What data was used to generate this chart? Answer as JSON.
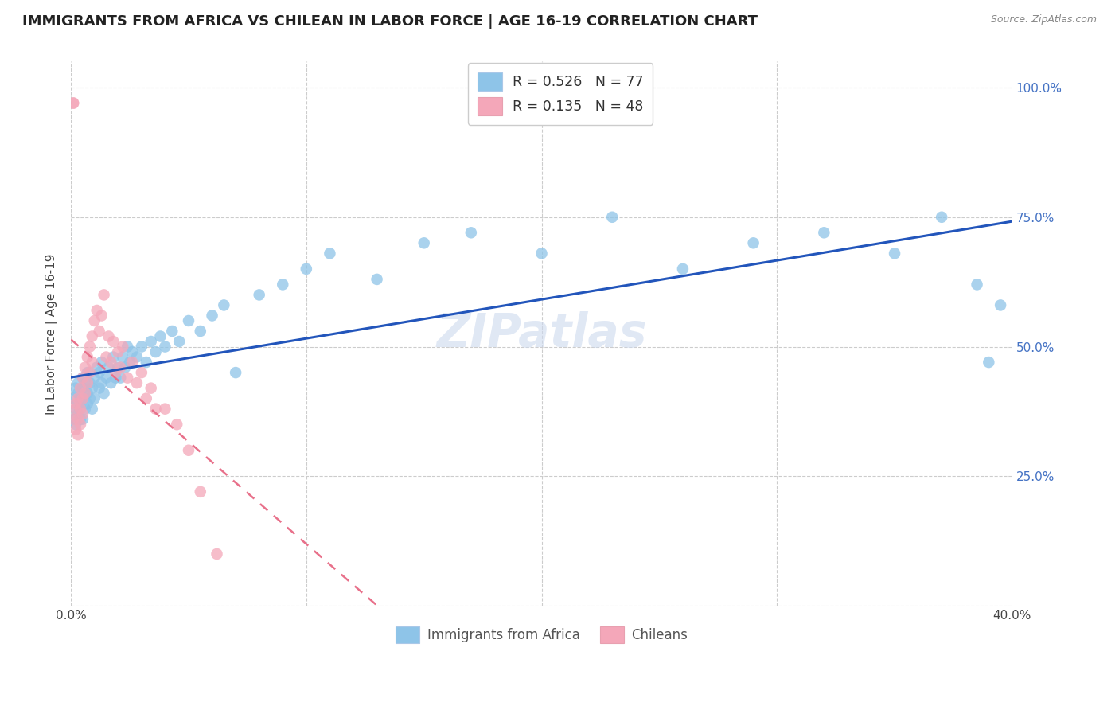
{
  "title": "IMMIGRANTS FROM AFRICA VS CHILEAN IN LABOR FORCE | AGE 16-19 CORRELATION CHART",
  "source": "Source: ZipAtlas.com",
  "ylabel": "In Labor Force | Age 16-19",
  "legend1_label": "R = 0.526   N = 77",
  "legend2_label": "R = 0.135   N = 48",
  "legend_bottom1": "Immigrants from Africa",
  "legend_bottom2": "Chileans",
  "africa_color": "#8ec4e8",
  "chilean_color": "#f4a7b9",
  "africa_line_color": "#2255bb",
  "chilean_line_color": "#e8708a",
  "xlim": [
    0.0,
    0.4
  ],
  "ylim": [
    0.0,
    1.05
  ],
  "x_ticks": [
    0.0,
    0.1,
    0.2,
    0.3,
    0.4
  ],
  "x_tick_labels": [
    "0.0%",
    "",
    "",
    "",
    "40.0%"
  ],
  "y_ticks": [
    0.0,
    0.25,
    0.5,
    0.75,
    1.0
  ],
  "y_tick_labels_right": [
    "",
    "25.0%",
    "50.0%",
    "75.0%",
    "100.0%"
  ],
  "africa_x": [
    0.001,
    0.001,
    0.002,
    0.002,
    0.002,
    0.003,
    0.003,
    0.003,
    0.003,
    0.004,
    0.004,
    0.004,
    0.005,
    0.005,
    0.005,
    0.005,
    0.006,
    0.006,
    0.006,
    0.007,
    0.007,
    0.007,
    0.008,
    0.008,
    0.009,
    0.009,
    0.01,
    0.01,
    0.011,
    0.012,
    0.012,
    0.013,
    0.013,
    0.014,
    0.015,
    0.016,
    0.017,
    0.018,
    0.019,
    0.02,
    0.021,
    0.022,
    0.023,
    0.024,
    0.025,
    0.026,
    0.028,
    0.03,
    0.032,
    0.034,
    0.036,
    0.038,
    0.04,
    0.043,
    0.046,
    0.05,
    0.055,
    0.06,
    0.065,
    0.07,
    0.08,
    0.09,
    0.1,
    0.11,
    0.13,
    0.15,
    0.17,
    0.2,
    0.23,
    0.26,
    0.29,
    0.32,
    0.35,
    0.37,
    0.385,
    0.39,
    0.395
  ],
  "africa_y": [
    0.36,
    0.4,
    0.38,
    0.42,
    0.35,
    0.39,
    0.41,
    0.37,
    0.43,
    0.36,
    0.4,
    0.38,
    0.42,
    0.36,
    0.4,
    0.44,
    0.38,
    0.41,
    0.43,
    0.39,
    0.41,
    0.45,
    0.4,
    0.43,
    0.38,
    0.42,
    0.44,
    0.4,
    0.46,
    0.42,
    0.45,
    0.43,
    0.47,
    0.41,
    0.44,
    0.46,
    0.43,
    0.48,
    0.44,
    0.46,
    0.44,
    0.48,
    0.46,
    0.5,
    0.47,
    0.49,
    0.48,
    0.5,
    0.47,
    0.51,
    0.49,
    0.52,
    0.5,
    0.53,
    0.51,
    0.55,
    0.53,
    0.56,
    0.58,
    0.45,
    0.6,
    0.62,
    0.65,
    0.68,
    0.63,
    0.7,
    0.72,
    0.68,
    0.75,
    0.65,
    0.7,
    0.72,
    0.68,
    0.75,
    0.62,
    0.47,
    0.58
  ],
  "chilean_x": [
    0.001,
    0.001,
    0.001,
    0.002,
    0.002,
    0.002,
    0.003,
    0.003,
    0.003,
    0.004,
    0.004,
    0.004,
    0.005,
    0.005,
    0.005,
    0.006,
    0.006,
    0.007,
    0.007,
    0.008,
    0.008,
    0.009,
    0.009,
    0.01,
    0.011,
    0.012,
    0.013,
    0.014,
    0.015,
    0.016,
    0.017,
    0.018,
    0.019,
    0.02,
    0.021,
    0.022,
    0.024,
    0.026,
    0.028,
    0.03,
    0.032,
    0.034,
    0.036,
    0.04,
    0.045,
    0.05,
    0.055,
    0.062
  ],
  "chilean_y": [
    0.97,
    0.97,
    0.36,
    0.38,
    0.34,
    0.39,
    0.36,
    0.4,
    0.33,
    0.38,
    0.42,
    0.35,
    0.44,
    0.4,
    0.37,
    0.46,
    0.41,
    0.48,
    0.43,
    0.5,
    0.45,
    0.52,
    0.47,
    0.55,
    0.57,
    0.53,
    0.56,
    0.6,
    0.48,
    0.52,
    0.47,
    0.51,
    0.45,
    0.49,
    0.46,
    0.5,
    0.44,
    0.47,
    0.43,
    0.45,
    0.4,
    0.42,
    0.38,
    0.38,
    0.35,
    0.3,
    0.22,
    0.1
  ],
  "grid_color": "#cccccc",
  "watermark_color": "#ccd9ee",
  "watermark_text": "ZIPatlas",
  "title_fontsize": 13,
  "source_fontsize": 9,
  "tick_fontsize": 11,
  "ylabel_fontsize": 11
}
